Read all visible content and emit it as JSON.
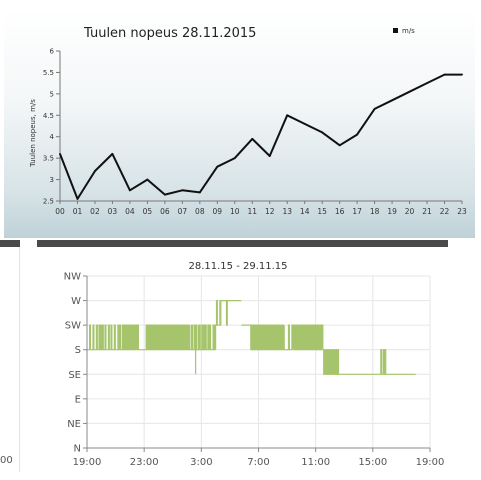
{
  "chart_data": [
    {
      "type": "line",
      "title": "Tuulen nopeus 28.11.2015",
      "ylabel": "Tuulen nopeus, m/s",
      "xlabel": "",
      "legend": {
        "label": "m/s",
        "position": "top-right"
      },
      "ylim": [
        2.5,
        6
      ],
      "yticks": [
        "2.5",
        "3",
        "3.5",
        "4",
        "4.5",
        "5",
        "5.5",
        "6"
      ],
      "categories": [
        "00",
        "01",
        "02",
        "03",
        "04",
        "05",
        "06",
        "07",
        "08",
        "09",
        "10",
        "11",
        "12",
        "13",
        "14",
        "15",
        "16",
        "17",
        "18",
        "19",
        "20",
        "21",
        "22",
        "23"
      ],
      "series": [
        {
          "values": [
            3.6,
            2.55,
            3.2,
            3.6,
            2.75,
            3.0,
            2.65,
            2.75,
            2.7,
            3.3,
            3.5,
            3.95,
            3.55,
            4.5,
            4.3,
            4.1,
            3.8,
            4.05,
            4.65,
            4.85,
            5.05,
            5.25,
            5.45,
            5.45
          ]
        }
      ],
      "line_color": "#111111",
      "grid": false
    },
    {
      "type": "line",
      "title": "28.11.15 - 29.11.15",
      "xlabel": "",
      "ylabel": "",
      "xticks": [
        "19:00",
        "23:00",
        "3:00",
        "7:00",
        "11:00",
        "15:00",
        "19:00"
      ],
      "yticks": [
        "N",
        "NE",
        "E",
        "SE",
        "S",
        "SW",
        "W",
        "NW"
      ],
      "ylim": [
        0,
        7
      ],
      "xlim_hours": [
        0,
        24
      ],
      "step_color": "#a5c46b",
      "grid": true,
      "series": [
        {
          "segments": [
            {
              "from": 0.0,
              "to": 2.4,
              "level": 4.0,
              "osc": 5.0,
              "density": 0.35
            },
            {
              "from": 2.4,
              "to": 3.6,
              "level": 4.0,
              "osc": 5.0,
              "density": 0.9
            },
            {
              "from": 3.6,
              "to": 4.2,
              "level": 4.0,
              "osc": 5.0,
              "density": 0.3
            },
            {
              "from": 4.2,
              "to": 7.2,
              "level": 5.0,
              "osc": 4.0,
              "density": 1.0
            },
            {
              "from": 7.2,
              "to": 7.8,
              "level": 4.0,
              "osc": 5.0,
              "density": 0.4
            },
            {
              "from": 7.8,
              "to": 9.0,
              "level": 4.0,
              "osc": 5.0,
              "density": 0.5
            },
            {
              "from": 9.0,
              "to": 9.4,
              "level": 5.0,
              "osc": 6.0,
              "density": 0.1
            },
            {
              "from": 9.4,
              "to": 10.8,
              "level": 6.0,
              "osc": 5.0,
              "density": 0.25
            },
            {
              "from": 10.8,
              "to": 11.4,
              "level": 5.0,
              "osc": 5.0,
              "density": 0.0
            },
            {
              "from": 11.4,
              "to": 13.8,
              "level": 5.0,
              "osc": 4.0,
              "density": 1.0
            },
            {
              "from": 13.8,
              "to": 14.4,
              "level": 4.0,
              "osc": 5.0,
              "density": 0.2
            },
            {
              "from": 14.4,
              "to": 16.5,
              "level": 5.0,
              "osc": 4.0,
              "density": 1.0
            },
            {
              "from": 16.5,
              "to": 17.6,
              "level": 4.0,
              "osc": 3.0,
              "density": 1.0
            },
            {
              "from": 17.6,
              "to": 20.5,
              "level": 3.0,
              "osc": 3.0,
              "density": 0.0
            },
            {
              "from": 20.5,
              "to": 20.9,
              "level": 3.0,
              "osc": 4.0,
              "density": 0.6
            },
            {
              "from": 20.9,
              "to": 23.0,
              "level": 3.0,
              "osc": 3.0,
              "density": 0.0
            }
          ],
          "spikes": [
            {
              "at": 7.6,
              "level": 3.0
            }
          ]
        }
      ]
    }
  ],
  "left_strip": {
    "tick": "00"
  }
}
